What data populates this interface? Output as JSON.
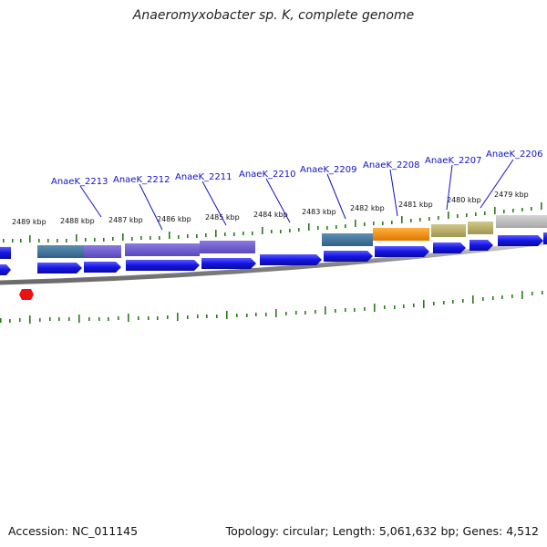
{
  "title": "Anaeromyxobacter sp. K, complete genome",
  "footer": {
    "accession": "Accession: NC_011145",
    "summary": "Topology: circular; Length: 5,061,632 bp; Genes: 4,512"
  },
  "colors": {
    "gene_label": "#1010cc",
    "tick": "#2a7a1a",
    "cds": "#1515e6",
    "backbone": "#777777",
    "marker": "#ee1111"
  },
  "kbp_labels": [
    "2489 kbp",
    "2488 kbp",
    "2487 kbp",
    "2486 kbp",
    "2485 kbp",
    "2484 kbp",
    "2483 kbp",
    "2482 kbp",
    "2481 kbp",
    "2480 kbp",
    "2479 kbp"
  ],
  "gene_labels": [
    "AnaeK_2213",
    "AnaeK_2212",
    "AnaeK_2211",
    "AnaeK_2210",
    "AnaeK_2209",
    "AnaeK_2208",
    "AnaeK_2207",
    "AnaeK_2206"
  ]
}
